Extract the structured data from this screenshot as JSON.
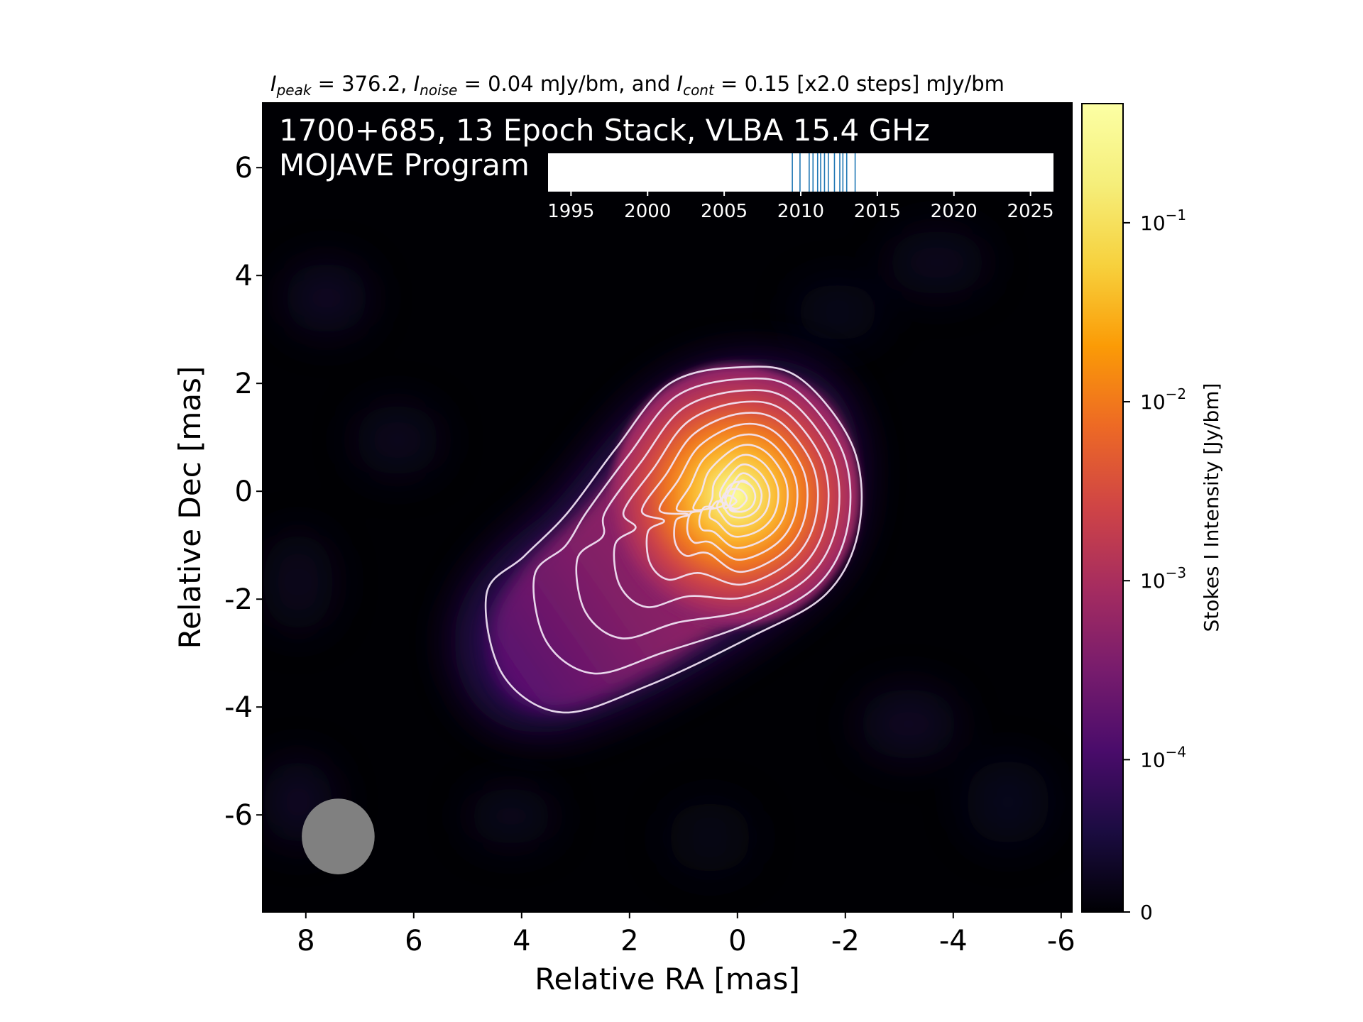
{
  "chart_data": {
    "type": "heatmap",
    "title": {
      "peak_sym": "I",
      "peak_sub": "peak",
      "peak_val": " = 376.2, ",
      "noise_sym": "I",
      "noise_sub": "noise",
      "noise_val": " = 0.04 mJy/bm, and ",
      "cont_sym": "I",
      "cont_sub": "cont",
      "cont_val": " = 0.15 [x2.0 steps] mJy/bm"
    },
    "overlay_text": [
      "1700+685, 13 Epoch Stack, VLBA 15.4 GHz",
      "MOJAVE Program"
    ],
    "xlabel": "Relative RA [mas]",
    "ylabel": "Relative Dec [mas]",
    "xlim": [
      8.8,
      -6.2
    ],
    "ylim": [
      -7.8,
      7.2
    ],
    "xticks": [
      8,
      6,
      4,
      2,
      0,
      -2,
      -4,
      -6
    ],
    "xtick_labels": [
      "8",
      "6",
      "4",
      "2",
      "0",
      "-2",
      "-4",
      "-6"
    ],
    "yticks": [
      6,
      4,
      2,
      0,
      -2,
      -4,
      -6
    ],
    "ytick_labels": [
      "6",
      "4",
      "2",
      "0",
      "-2",
      "-4",
      "-6"
    ],
    "colormap": "inferno",
    "colorbar": {
      "label": "Stokes I Intensity [Jy/bm]",
      "scale": "symlog",
      "ticks": [
        {
          "value": 0.1,
          "base": "10",
          "exp": "−1"
        },
        {
          "value": 0.01,
          "base": "10",
          "exp": "−2"
        },
        {
          "value": 0.001,
          "base": "10",
          "exp": "−3"
        },
        {
          "value": 0.0001,
          "base": "10",
          "exp": "−4"
        },
        {
          "value": 0,
          "base": "0",
          "exp": ""
        }
      ]
    },
    "core": {
      "ra": -0.05,
      "dec": -0.1,
      "peak_jy_per_bm": 0.3762
    },
    "jet_direction": "south-east",
    "contour_levels_mjy": [
      0.15,
      0.3,
      0.6,
      1.2,
      2.4,
      4.8,
      9.6,
      19.2,
      38.4,
      76.8,
      153.6,
      307.2
    ],
    "beam": {
      "ra": 7.4,
      "dec": -6.4,
      "major_mas": 1.35,
      "minor_mas": 1.35,
      "color": "#808080"
    },
    "epoch_timeline": {
      "xlim": [
        1993.5,
        2026.5
      ],
      "ticks": [
        1995,
        2000,
        2005,
        2010,
        2015,
        2020,
        2025
      ],
      "tick_labels": [
        "1995",
        "2000",
        "2005",
        "2010",
        "2015",
        "2020",
        "2025"
      ],
      "epochs": [
        2009.45,
        2009.95,
        2010.55,
        2010.8,
        2011.1,
        2011.3,
        2011.55,
        2011.8,
        2012.2,
        2012.55,
        2012.75,
        2013.0,
        2013.55
      ],
      "line_color": "#1f77b4"
    }
  }
}
